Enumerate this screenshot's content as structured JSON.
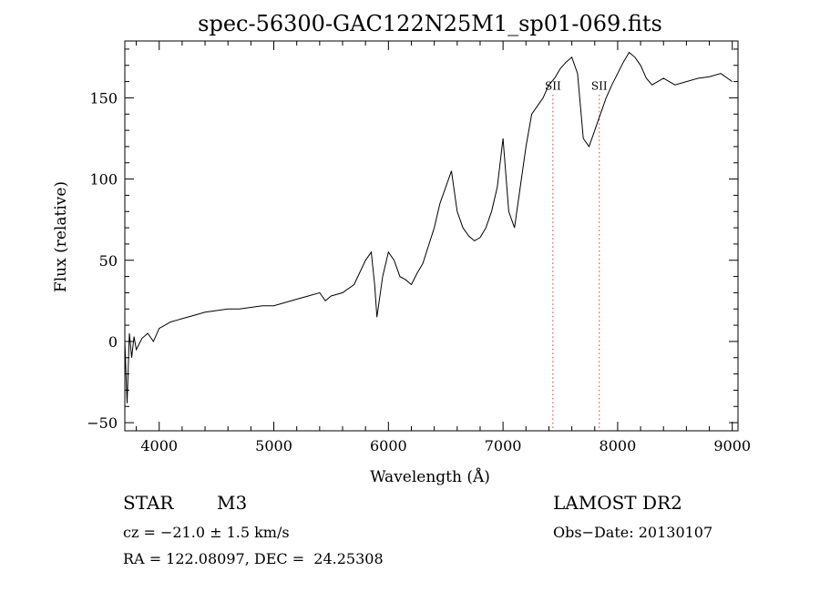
{
  "chart_data": {
    "type": "line",
    "title": "spec-56300-GAC122N25M1_sp01-069.fits",
    "xlabel": "Wavelength (Å)",
    "ylabel": "Flux (relative)",
    "xlim": [
      3700,
      9050
    ],
    "ylim": [
      -55,
      185
    ],
    "xticks": [
      4000,
      5000,
      6000,
      7000,
      8000,
      9000
    ],
    "yticks": [
      -50,
      0,
      50,
      100,
      150
    ],
    "x_tick_labels": [
      "4000",
      "5000",
      "6000",
      "7000",
      "8000",
      "9000"
    ],
    "y_tick_labels": [
      "−50",
      "0",
      "50",
      "100",
      "150"
    ],
    "series": [
      {
        "x": [
          3700,
          3720,
          3740,
          3760,
          3780,
          3800,
          3850,
          3900,
          3950,
          4000,
          4050,
          4100,
          4150,
          4200,
          4300,
          4400,
          4500,
          4600,
          4700,
          4800,
          4900,
          5000,
          5100,
          5200,
          5300,
          5400,
          5450,
          5500,
          5600,
          5700,
          5800,
          5850,
          5880,
          5900,
          5950,
          6000,
          6050,
          6100,
          6150,
          6200,
          6250,
          6300,
          6400,
          6450,
          6500,
          6550,
          6600,
          6650,
          6700,
          6750,
          6800,
          6850,
          6900,
          6950,
          7000,
          7050,
          7100,
          7150,
          7200,
          7250,
          7300,
          7350,
          7400,
          7450,
          7500,
          7550,
          7600,
          7650,
          7700,
          7750,
          7800,
          7850,
          7900,
          7950,
          8000,
          8050,
          8100,
          8150,
          8200,
          8250,
          8300,
          8350,
          8400,
          8450,
          8500,
          8600,
          8700,
          8800,
          8900,
          9000
        ],
        "y": [
          0,
          -38,
          5,
          -10,
          3,
          -5,
          2,
          5,
          0,
          8,
          10,
          12,
          13,
          14,
          16,
          18,
          19,
          20,
          20,
          21,
          22,
          22,
          24,
          26,
          28,
          30,
          25,
          28,
          30,
          35,
          50,
          55,
          35,
          15,
          40,
          55,
          50,
          40,
          38,
          35,
          42,
          48,
          70,
          85,
          95,
          105,
          80,
          70,
          65,
          62,
          64,
          70,
          80,
          95,
          125,
          80,
          70,
          95,
          120,
          140,
          145,
          150,
          158,
          162,
          168,
          172,
          175,
          165,
          125,
          120,
          130,
          140,
          150,
          158,
          165,
          172,
          178,
          175,
          170,
          162,
          158,
          160,
          162,
          160,
          158,
          160,
          162,
          163,
          165,
          160
        ]
      }
    ],
    "markers": [
      {
        "x": 7435,
        "label": "SII"
      },
      {
        "x": 7840,
        "label": "SII"
      }
    ]
  },
  "info": {
    "class_label": "STAR",
    "subclass": "M3",
    "survey": "LAMOST DR2",
    "cz": "cz = −21.0 ± 1.5 km/s",
    "obs_date": "Obs−Date: 20130107",
    "coords": "RA = 122.08097, DEC =  24.25308"
  }
}
